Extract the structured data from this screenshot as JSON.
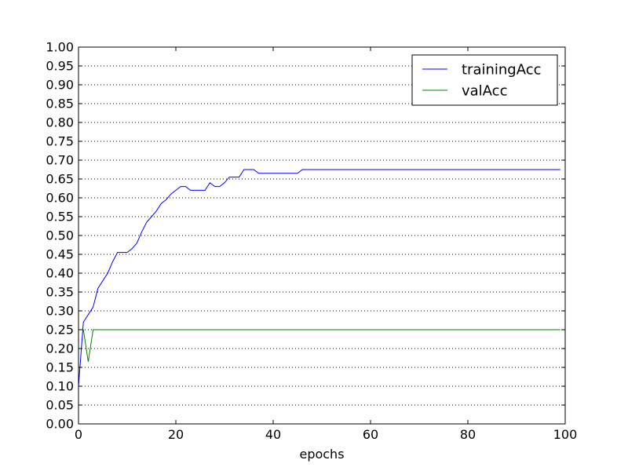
{
  "chart_data": {
    "type": "line",
    "title": "",
    "xlabel": "epochs",
    "ylabel": "",
    "xlim": [
      0,
      100
    ],
    "ylim": [
      0,
      1
    ],
    "xticks": [
      0,
      20,
      40,
      60,
      80,
      100
    ],
    "xtick_labels": [
      "0",
      "20",
      "40",
      "60",
      "80",
      "100"
    ],
    "yticks": [
      0,
      0.05,
      0.1,
      0.15,
      0.2,
      0.25,
      0.3,
      0.35,
      0.4,
      0.45,
      0.5,
      0.55,
      0.6,
      0.65,
      0.7,
      0.75,
      0.8,
      0.85,
      0.9,
      0.95,
      1.0
    ],
    "ytick_labels": [
      "0.00",
      "0.05",
      "0.10",
      "0.15",
      "0.20",
      "0.25",
      "0.30",
      "0.35",
      "0.40",
      "0.45",
      "0.50",
      "0.55",
      "0.60",
      "0.65",
      "0.70",
      "0.75",
      "0.80",
      "0.85",
      "0.90",
      "0.95",
      "1.00"
    ],
    "grid": "horizontal dotted",
    "legend_position": "top-right",
    "series": [
      {
        "name": "trainingAcc",
        "color": "#0000ff",
        "x": [
          0,
          1,
          2,
          3,
          4,
          5,
          6,
          7,
          8,
          9,
          10,
          11,
          12,
          13,
          14,
          15,
          16,
          17,
          18,
          19,
          20,
          21,
          22,
          23,
          24,
          25,
          26,
          27,
          28,
          29,
          30,
          31,
          32,
          33,
          34,
          35,
          36,
          37,
          38,
          39,
          40,
          41,
          42,
          43,
          44,
          45,
          46,
          47,
          99
        ],
        "y": [
          0.1,
          0.27,
          0.29,
          0.31,
          0.36,
          0.38,
          0.4,
          0.43,
          0.455,
          0.455,
          0.455,
          0.465,
          0.48,
          0.51,
          0.535,
          0.55,
          0.565,
          0.585,
          0.595,
          0.61,
          0.62,
          0.63,
          0.63,
          0.62,
          0.62,
          0.62,
          0.62,
          0.64,
          0.63,
          0.63,
          0.64,
          0.655,
          0.655,
          0.655,
          0.675,
          0.675,
          0.675,
          0.665,
          0.665,
          0.665,
          0.665,
          0.665,
          0.665,
          0.665,
          0.665,
          0.665,
          0.675,
          0.675,
          0.675
        ]
      },
      {
        "name": "valAcc",
        "color": "#008000",
        "x": [
          0,
          1,
          2,
          3,
          99
        ],
        "y": [
          0.25,
          0.25,
          0.165,
          0.25,
          0.25
        ]
      }
    ]
  }
}
